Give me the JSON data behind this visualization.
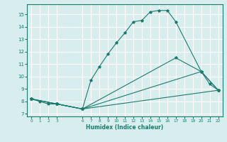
{
  "xlabel": "Humidex (Indice chaleur)",
  "bg_color": "#d8eeee",
  "grid_color": "#ffffff",
  "line_color": "#1a7a6e",
  "xlim": [
    -0.5,
    22.5
  ],
  "ylim": [
    6.8,
    15.8
  ],
  "yticks": [
    7,
    8,
    9,
    10,
    11,
    12,
    13,
    14,
    15
  ],
  "xticks": [
    0,
    1,
    2,
    3,
    6,
    7,
    8,
    9,
    10,
    11,
    12,
    13,
    14,
    15,
    16,
    17,
    18,
    19,
    20,
    21,
    22
  ],
  "lines": [
    {
      "x": [
        0,
        1,
        2,
        3,
        6,
        7,
        8,
        9,
        10,
        11,
        12,
        13,
        14,
        15,
        16,
        17,
        20,
        21,
        22
      ],
      "y": [
        8.2,
        8.0,
        7.8,
        7.8,
        7.4,
        9.7,
        10.8,
        11.8,
        12.7,
        13.5,
        14.4,
        14.5,
        15.2,
        15.3,
        15.3,
        14.4,
        10.4,
        9.4,
        8.9
      ]
    },
    {
      "x": [
        0,
        3,
        6,
        22
      ],
      "y": [
        8.2,
        7.8,
        7.4,
        8.9
      ]
    },
    {
      "x": [
        0,
        3,
        6,
        20,
        22
      ],
      "y": [
        8.2,
        7.8,
        7.4,
        10.4,
        8.9
      ]
    },
    {
      "x": [
        0,
        3,
        6,
        17,
        20,
        22
      ],
      "y": [
        8.2,
        7.8,
        7.4,
        11.5,
        10.4,
        8.9
      ]
    }
  ]
}
